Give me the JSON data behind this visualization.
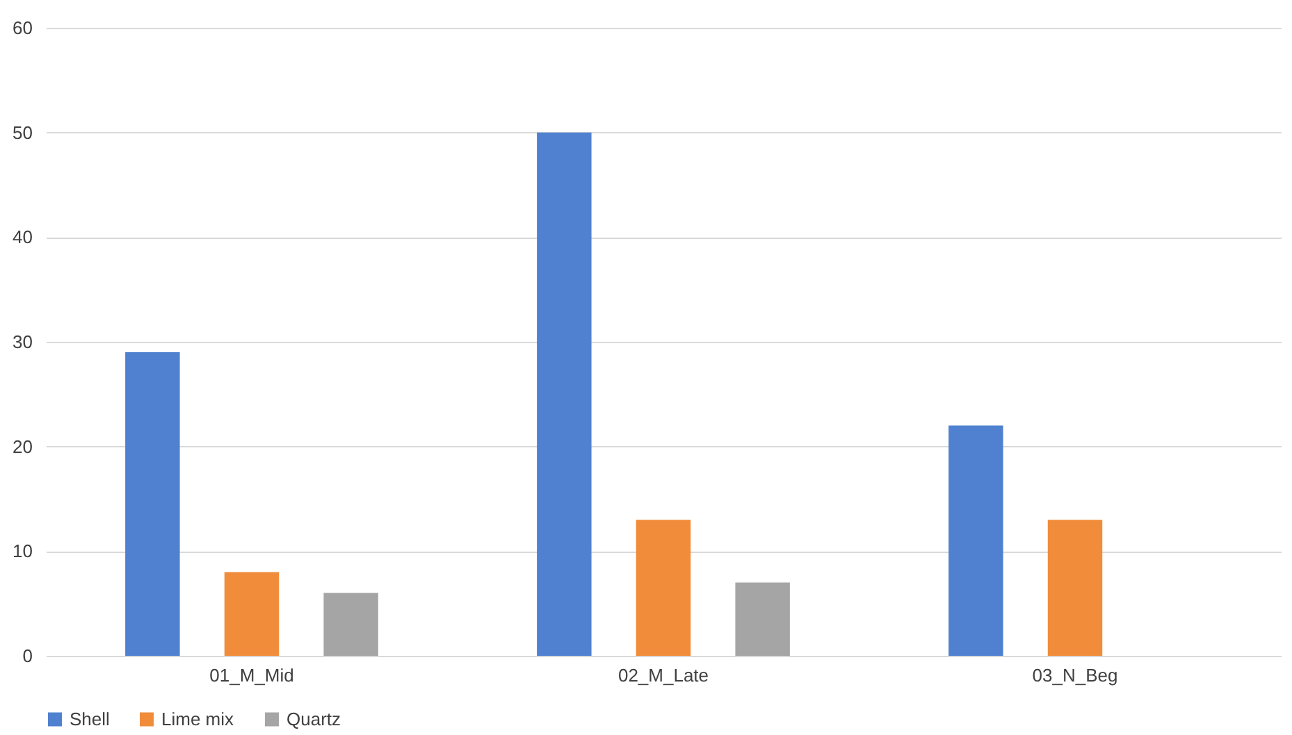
{
  "chart_data": {
    "type": "bar",
    "categories": [
      "01_M_Mid",
      "02_M_Late",
      "03_N_Beg"
    ],
    "series": [
      {
        "name": "Shell",
        "color": "#4f81d0",
        "values": [
          29,
          50,
          22
        ]
      },
      {
        "name": "Lime mix",
        "color": "#f08c3a",
        "values": [
          8,
          13,
          13
        ]
      },
      {
        "name": "Quartz",
        "color": "#a5a5a5",
        "values": [
          6,
          7,
          null
        ]
      }
    ],
    "ylim": [
      0,
      60
    ],
    "yticks": [
      0,
      10,
      20,
      30,
      40,
      50,
      60
    ],
    "grid": "y",
    "legend": "bottom"
  }
}
